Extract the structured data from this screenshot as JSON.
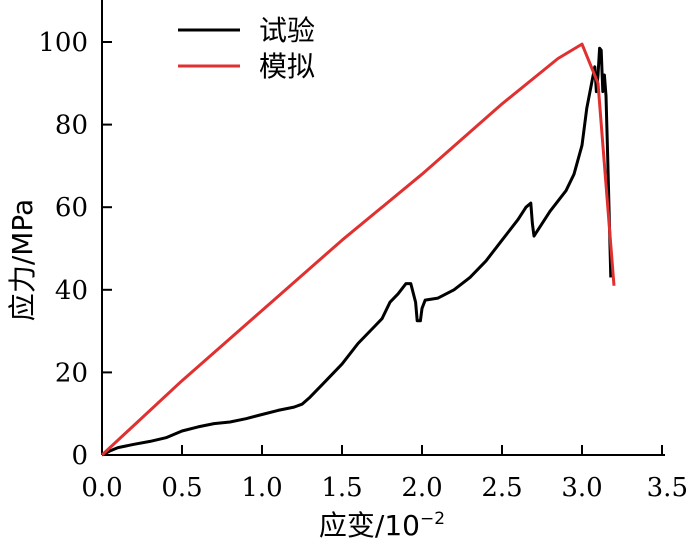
{
  "chart_data": {
    "type": "line",
    "xlabel": "应变/10",
    "xlabel_exp": "−2",
    "ylabel": "应力/MPa",
    "xlim": [
      0,
      3.5
    ],
    "ylim": [
      0,
      100
    ],
    "x_ticks": [
      "0.0",
      "0.5",
      "1.0",
      "1.5",
      "2.0",
      "2.5",
      "3.0",
      "3.5"
    ],
    "y_ticks": [
      "0",
      "20",
      "40",
      "60",
      "80",
      "100"
    ],
    "legend_position": "top-left",
    "grid": false,
    "series": [
      {
        "name": "试验",
        "color": "#000000",
        "points": [
          [
            0,
            0
          ],
          [
            0.05,
            1
          ],
          [
            0.1,
            1.8
          ],
          [
            0.2,
            2.6
          ],
          [
            0.3,
            3.3
          ],
          [
            0.4,
            4.2
          ],
          [
            0.5,
            5.8
          ],
          [
            0.6,
            6.8
          ],
          [
            0.7,
            7.6
          ],
          [
            0.8,
            8.0
          ],
          [
            0.9,
            8.8
          ],
          [
            1.0,
            9.8
          ],
          [
            1.1,
            10.8
          ],
          [
            1.2,
            11.6
          ],
          [
            1.25,
            12.3
          ],
          [
            1.3,
            14
          ],
          [
            1.4,
            18
          ],
          [
            1.5,
            22
          ],
          [
            1.6,
            27
          ],
          [
            1.7,
            31
          ],
          [
            1.75,
            33
          ],
          [
            1.8,
            37
          ],
          [
            1.85,
            39
          ],
          [
            1.9,
            41.5
          ],
          [
            1.93,
            41.5
          ],
          [
            1.96,
            37
          ],
          [
            1.97,
            32.5
          ],
          [
            1.99,
            32.5
          ],
          [
            2.0,
            35.5
          ],
          [
            2.02,
            37.5
          ],
          [
            2.1,
            38
          ],
          [
            2.2,
            40
          ],
          [
            2.3,
            43
          ],
          [
            2.4,
            47
          ],
          [
            2.5,
            52
          ],
          [
            2.6,
            57
          ],
          [
            2.65,
            60
          ],
          [
            2.68,
            61
          ],
          [
            2.69,
            56
          ],
          [
            2.7,
            53
          ],
          [
            2.75,
            56
          ],
          [
            2.8,
            59
          ],
          [
            2.9,
            64
          ],
          [
            2.95,
            68
          ],
          [
            3.0,
            75
          ],
          [
            3.03,
            84
          ],
          [
            3.06,
            90
          ],
          [
            3.08,
            94
          ],
          [
            3.09,
            88
          ],
          [
            3.1,
            92
          ],
          [
            3.11,
            98.5
          ],
          [
            3.12,
            98
          ],
          [
            3.13,
            88
          ],
          [
            3.14,
            92
          ],
          [
            3.15,
            87
          ],
          [
            3.16,
            73
          ],
          [
            3.17,
            58
          ],
          [
            3.18,
            43
          ]
        ]
      },
      {
        "name": "模拟",
        "color": "#e03030",
        "points": [
          [
            0,
            0
          ],
          [
            0.5,
            18
          ],
          [
            1.0,
            35
          ],
          [
            1.5,
            52
          ],
          [
            2.0,
            68
          ],
          [
            2.5,
            85
          ],
          [
            2.85,
            96
          ],
          [
            3.0,
            99.5
          ],
          [
            3.1,
            90
          ],
          [
            3.2,
            41
          ]
        ]
      }
    ]
  }
}
